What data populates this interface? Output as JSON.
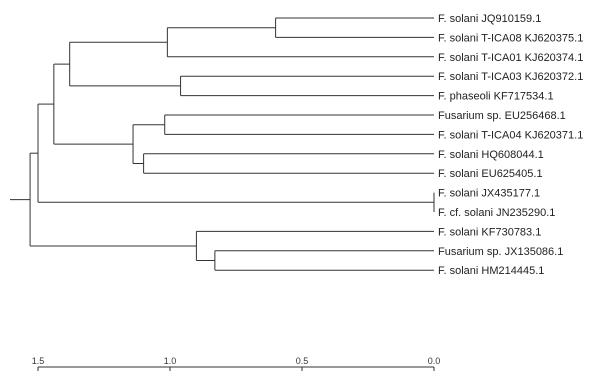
{
  "tree": {
    "line_color": "#333333",
    "root_height": 1.56,
    "leaves": [
      "F. solani JQ910159.1",
      "F. solani T-ICA08 KJ620375.1",
      "F. solani T-ICA01 KJ620374.1",
      "F. solani T-ICA03 KJ620372.1",
      "F. phaseoli KF717534.1",
      "Fusarium sp. EU256468.1",
      "F. solani T-ICA04 KJ620371.1",
      "F. solani HQ608044.1",
      "F. solani EU625405.1",
      "F. solani JX435177.1",
      "F. cf. solani JN235290.1",
      "F. solani KF730783.1",
      "Fusarium sp. JX135086.1",
      "F. solani HM214445.1"
    ],
    "nodes": [
      {
        "id": "n1",
        "height": 0.6,
        "children": [
          "L0",
          "L1"
        ]
      },
      {
        "id": "n2",
        "height": 1.01,
        "children": [
          "n1",
          "L2"
        ]
      },
      {
        "id": "n3",
        "height": 0.96,
        "children": [
          "L3",
          "L4"
        ]
      },
      {
        "id": "n4",
        "height": 1.38,
        "children": [
          "n2",
          "n3"
        ]
      },
      {
        "id": "n5",
        "height": 1.02,
        "children": [
          "L5",
          "L6"
        ]
      },
      {
        "id": "n6",
        "height": 1.1,
        "children": [
          "L7",
          "L8"
        ]
      },
      {
        "id": "n7",
        "height": 1.14,
        "children": [
          "n5",
          "n6"
        ]
      },
      {
        "id": "n8",
        "height": 1.44,
        "children": [
          "n4",
          "n7"
        ]
      },
      {
        "id": "n9",
        "height": 0.0,
        "children": [
          "L9",
          "L10"
        ]
      },
      {
        "id": "n10",
        "height": 1.5,
        "children": [
          "n8",
          "n9"
        ]
      },
      {
        "id": "n11",
        "height": 0.83,
        "children": [
          "L12",
          "L13"
        ]
      },
      {
        "id": "n12",
        "height": 0.9,
        "children": [
          "L11",
          "n11"
        ]
      },
      {
        "id": "n13",
        "height": 1.53,
        "children": [
          "n10",
          "n12"
        ]
      }
    ]
  },
  "axis": {
    "range": [
      1.5,
      0.0
    ],
    "ticks": [
      {
        "value": 1.5,
        "label": "1.5"
      },
      {
        "value": 1.0,
        "label": "1.0"
      },
      {
        "value": 0.5,
        "label": "0.5"
      },
      {
        "value": 0.0,
        "label": "0.0"
      }
    ]
  }
}
